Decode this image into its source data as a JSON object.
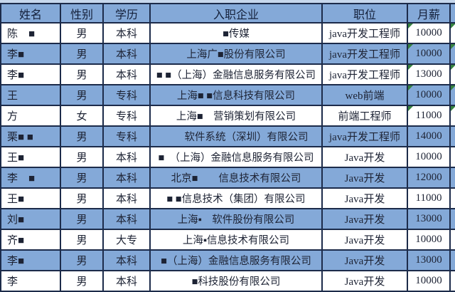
{
  "table": {
    "columns": [
      "姓名",
      "性别",
      "学历",
      "入职企业",
      "职位",
      "月薪"
    ],
    "rows": [
      {
        "name": "陈　■",
        "gender": "男",
        "education": "本科",
        "company": "■传媒",
        "position": "java开发工程师",
        "salary": "10000",
        "highlight": false,
        "error_flag": true
      },
      {
        "name": "李■",
        "gender": "男",
        "education": "本科",
        "company": "上海广■股份有限公司",
        "position": "java开发工程师",
        "salary": "10000",
        "highlight": true,
        "error_flag": true
      },
      {
        "name": "李■",
        "gender": "男",
        "education": "本科",
        "company": "■ ■（上海）金融信息服务有限公司",
        "position": "java开发工程师",
        "salary": "13000",
        "highlight": false,
        "error_flag": true
      },
      {
        "name": "王",
        "gender": "男",
        "education": "专科",
        "company": "上海■ ■信息科技有限公司",
        "position": "web前端",
        "salary": "10000",
        "highlight": true,
        "error_flag": true
      },
      {
        "name": "方",
        "gender": "女",
        "education": "专科",
        "company": "上海■　营销策划有限公司",
        "position": "前端工程师",
        "salary": "11000",
        "highlight": false,
        "error_flag": true
      },
      {
        "name": "栗■ ■",
        "gender": "男",
        "education": "专科",
        "company": "　　软件系统（深圳）有限公司",
        "position": "java开发工程师",
        "salary": "14000",
        "highlight": true,
        "error_flag": false
      },
      {
        "name": "王■",
        "gender": "男",
        "education": "本科",
        "company": "■　（上海）金融信息服务有限公司",
        "position": "Java开发",
        "salary": "10000",
        "highlight": false,
        "error_flag": false
      },
      {
        "name": "李　■",
        "gender": "男",
        "education": "本科",
        "company": "北京■　　信息技术有限公司",
        "position": "Java开发",
        "salary": "12000",
        "highlight": true,
        "error_flag": false
      },
      {
        "name": "王■",
        "gender": "男",
        "education": "本科",
        "company": "■ ■信息技术（集团）有限公司",
        "position": "Java开发",
        "salary": "11000",
        "highlight": false,
        "error_flag": false
      },
      {
        "name": "刘■",
        "gender": "男",
        "education": "本科",
        "company": "上海▪　软件股份有限公司",
        "position": "Java开发",
        "salary": "13000",
        "highlight": true,
        "error_flag": false
      },
      {
        "name": "齐■",
        "gender": "男",
        "education": "大专",
        "company": "上海▪信息技术有限公司",
        "position": "Java开发",
        "salary": "10000",
        "highlight": false,
        "error_flag": false
      },
      {
        "name": "李■",
        "gender": "男",
        "education": "本科",
        "company": "■（上海）金融信息服务有限公司",
        "position": "Java开发",
        "salary": "13000",
        "highlight": true,
        "error_flag": false
      },
      {
        "name": "李",
        "gender": "男",
        "education": "本科",
        "company": "■科技股份有限公司",
        "position": "Java开发",
        "salary": "10000",
        "highlight": false,
        "error_flag": false
      }
    ],
    "colors": {
      "row_highlight": "#84a9d8",
      "grid_border": "#1c2b4a",
      "error_flag_green": "#36823f"
    }
  }
}
